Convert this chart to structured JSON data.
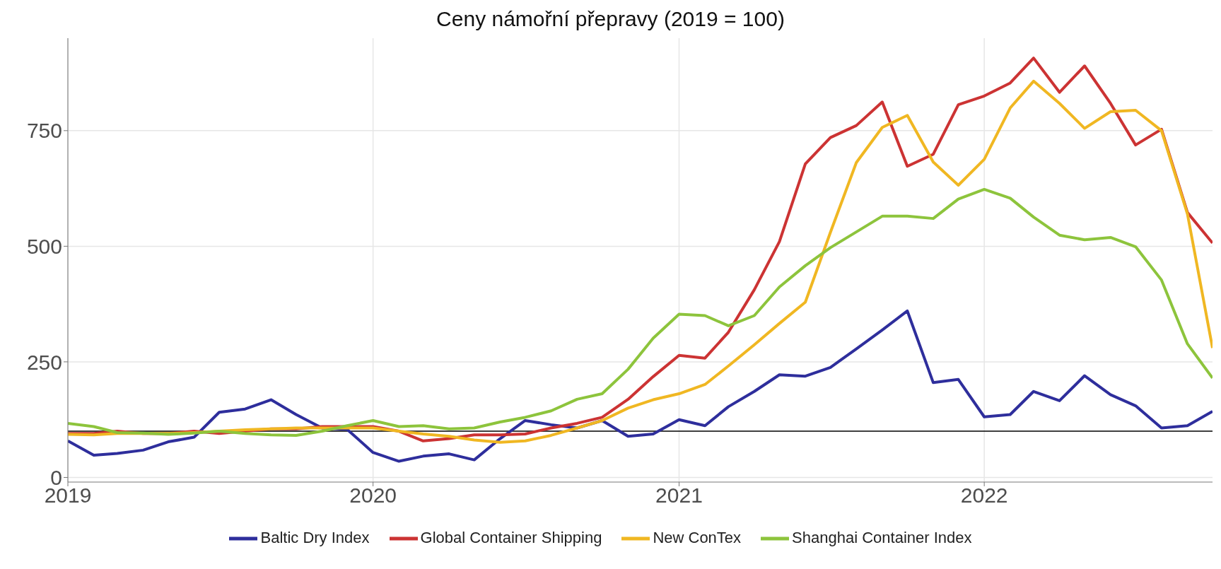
{
  "chart_data": {
    "type": "line",
    "title": "Ceny námořní přepravy (2019 = 100)",
    "x": [
      "2019-01",
      "2019-02",
      "2019-03",
      "2019-04",
      "2019-05",
      "2019-06",
      "2019-07",
      "2019-08",
      "2019-09",
      "2019-10",
      "2019-11",
      "2019-12",
      "2020-01",
      "2020-02",
      "2020-03",
      "2020-04",
      "2020-05",
      "2020-06",
      "2020-07",
      "2020-08",
      "2020-09",
      "2020-10",
      "2020-11",
      "2020-12",
      "2021-01",
      "2021-02",
      "2021-03",
      "2021-04",
      "2021-05",
      "2021-06",
      "2021-07",
      "2021-08",
      "2021-09",
      "2021-10",
      "2021-11",
      "2021-12",
      "2022-01",
      "2022-02",
      "2022-03",
      "2022-04",
      "2022-05",
      "2022-06",
      "2022-07",
      "2022-08",
      "2022-09",
      "2022-10"
    ],
    "series": [
      {
        "name": "Baltic Dry Index",
        "color": "#2e2e9c",
        "values": [
          79,
          48,
          52,
          59,
          77,
          87,
          141,
          148,
          168,
          136,
          107,
          104,
          54,
          35,
          46,
          51,
          38,
          84,
          123,
          114,
          107,
          123,
          89,
          94,
          125,
          112,
          153,
          186,
          222,
          219,
          238,
          278,
          319,
          360,
          205,
          212,
          131,
          136,
          186,
          166,
          220,
          179,
          155,
          107,
          112,
          143
        ]
      },
      {
        "name": "Global Container Shipping",
        "color": "#cc3333",
        "values": [
          95,
          95,
          100,
          95,
          95,
          100,
          95,
          100,
          105,
          105,
          110,
          110,
          110,
          100,
          79,
          84,
          92,
          92,
          94,
          107,
          117,
          130,
          169,
          218,
          264,
          258,
          314,
          406,
          510,
          678,
          735,
          761,
          812,
          673,
          699,
          806,
          825,
          853,
          907,
          833,
          890,
          809,
          719,
          753,
          573,
          507
        ]
      },
      {
        "name": "New ConTex",
        "color": "#f0b722",
        "values": [
          93,
          92,
          95,
          95,
          95,
          97,
          100,
          103,
          105,
          107,
          107,
          107,
          107,
          100,
          94,
          89,
          81,
          76,
          79,
          91,
          107,
          123,
          150,
          168,
          181,
          201,
          241,
          287,
          333,
          379,
          530,
          681,
          757,
          783,
          682,
          632,
          688,
          799,
          857,
          809,
          755,
          791,
          794,
          750,
          570,
          280
        ]
      },
      {
        "name": "Shanghai Container Index",
        "color": "#8dc43c",
        "values": [
          117,
          110,
          97,
          96,
          93,
          96,
          100,
          95,
          92,
          91,
          100,
          112,
          123,
          110,
          112,
          105,
          107,
          120,
          130,
          144,
          169,
          181,
          234,
          301,
          353,
          350,
          328,
          350,
          412,
          458,
          497,
          531,
          565,
          565,
          560,
          602,
          623,
          604,
          563,
          524,
          514,
          519,
          499,
          427,
          289,
          215
        ]
      }
    ],
    "xlim": [
      "2019-01",
      "2022-10"
    ],
    "xticks": [
      "2019",
      "2020",
      "2021",
      "2022"
    ],
    "ylim": [
      -10,
      950
    ],
    "yticks": [
      0,
      250,
      500,
      750
    ],
    "ref_lines": [
      {
        "axis": "y",
        "value": 100,
        "color": "#000000"
      }
    ],
    "grid": true,
    "legend": "bottom",
    "marker": "none",
    "line_style": "solid"
  }
}
